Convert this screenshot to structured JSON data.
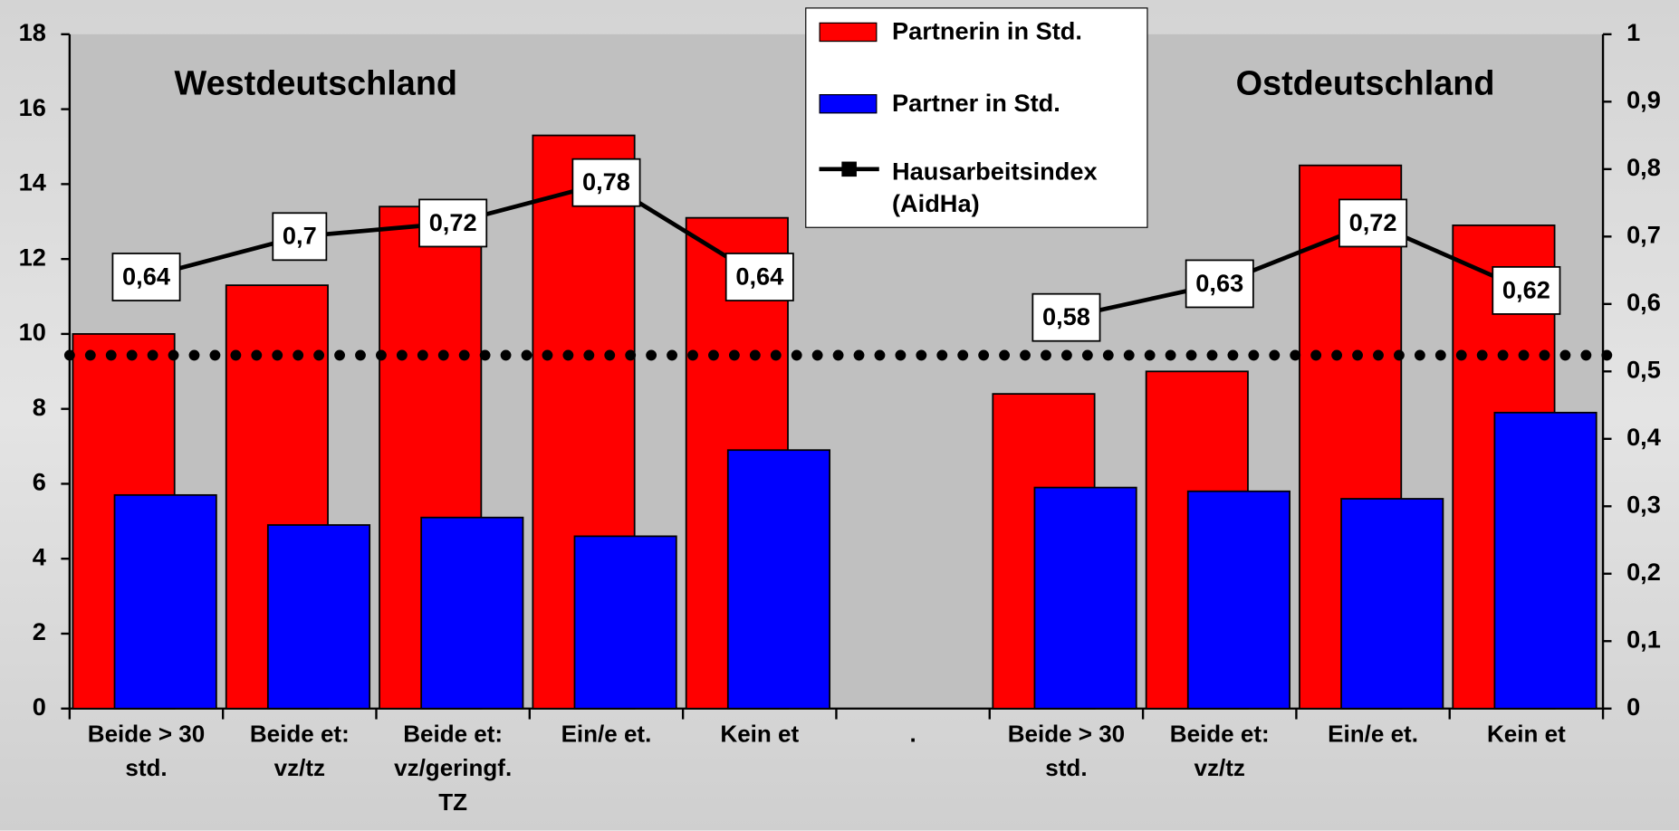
{
  "chart_data": {
    "type": "bar",
    "annotations": [
      "Westdeutschland",
      "Ostdeutschland"
    ],
    "categories": [
      "Beide > 30 std.",
      "Beide et: vz/tz",
      "Beide et: vz/geringf. TZ",
      "Ein/e et.",
      "Kein et",
      ".",
      "Beide > 30 std.",
      "Beide et: vz/tz",
      "Ein/e et.",
      "Kein et"
    ],
    "series": [
      {
        "name": "Partnerin in Std.",
        "color": "#ff0000",
        "values": [
          10,
          11.3,
          13.4,
          15.3,
          13.1,
          null,
          8.4,
          9.0,
          14.5,
          12.9
        ]
      },
      {
        "name": "Partner in Std.",
        "color": "#0000ff",
        "values": [
          5.7,
          4.9,
          5.1,
          4.6,
          6.9,
          null,
          5.9,
          5.8,
          5.6,
          7.9
        ]
      },
      {
        "name": "Hausarbeitsindex (AidHa)",
        "type": "line",
        "axis": "y2",
        "color": "#000000",
        "values": [
          0.64,
          0.7,
          0.72,
          0.78,
          0.64,
          null,
          0.58,
          0.63,
          0.72,
          0.62
        ],
        "value_labels": [
          "0,64",
          "0,7",
          "0,72",
          "0,78",
          "0,64",
          null,
          "0,58",
          "0,63",
          "0,72",
          "0,62"
        ]
      }
    ],
    "reference_line": {
      "value": 0.524,
      "axis": "y2"
    },
    "ylim": [
      0,
      18
    ],
    "yticks": [
      0,
      2,
      4,
      6,
      8,
      10,
      12,
      14,
      16,
      18
    ],
    "y2lim": [
      0,
      1
    ],
    "y2ticks": [
      0,
      {
        "value": 0.1,
        "label": "0,1"
      },
      {
        "value": 0.2,
        "label": "0,2"
      },
      {
        "value": 0.3,
        "label": "0,3"
      },
      {
        "value": 0.4,
        "label": "0,4"
      },
      {
        "value": 0.5,
        "label": "0,5"
      },
      {
        "value": 0.6,
        "label": "0,6"
      },
      {
        "value": 0.7,
        "label": "0,7"
      },
      {
        "value": 0.8,
        "label": "0,8"
      },
      {
        "value": 0.9,
        "label": "0,9"
      },
      1
    ]
  }
}
